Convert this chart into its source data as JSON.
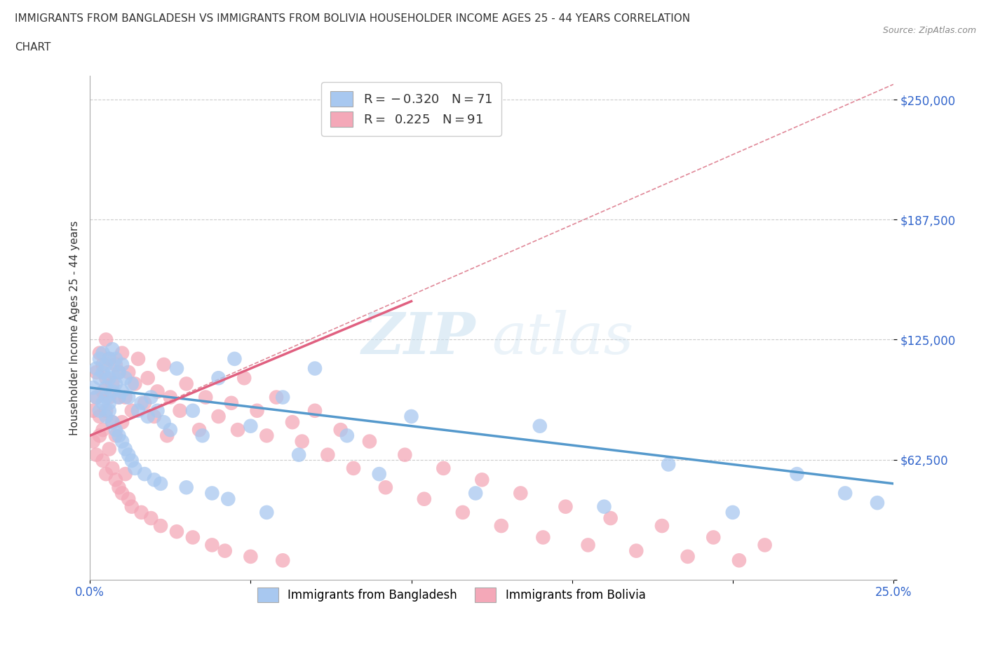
{
  "title_line1": "IMMIGRANTS FROM BANGLADESH VS IMMIGRANTS FROM BOLIVIA HOUSEHOLDER INCOME AGES 25 - 44 YEARS CORRELATION",
  "title_line2": "CHART",
  "source": "Source: ZipAtlas.com",
  "ylabel": "Householder Income Ages 25 - 44 years",
  "xlim": [
    0.0,
    0.25
  ],
  "ylim": [
    0,
    262500
  ],
  "yticks": [
    0,
    62500,
    125000,
    187500,
    250000
  ],
  "ytick_labels": [
    "",
    "$62,500",
    "$125,000",
    "$187,500",
    "$250,000"
  ],
  "xticks": [
    0.0,
    0.05,
    0.1,
    0.15,
    0.2,
    0.25
  ],
  "xtick_labels": [
    "0.0%",
    "",
    "",
    "",
    "",
    "25.0%"
  ],
  "color_bangladesh": "#a8c8f0",
  "color_bolivia": "#f4a8b8",
  "color_trendline_bangladesh": "#5599cc",
  "color_trendline_bolivia": "#e06080",
  "color_dashed": "#e08898",
  "watermark_zip": "ZIP",
  "watermark_atlas": "atlas",
  "background_color": "#ffffff",
  "grid_color": "#cccccc",
  "bangladesh_x": [
    0.001,
    0.002,
    0.002,
    0.003,
    0.003,
    0.003,
    0.004,
    0.004,
    0.004,
    0.005,
    0.005,
    0.005,
    0.005,
    0.006,
    0.006,
    0.006,
    0.006,
    0.007,
    0.007,
    0.007,
    0.007,
    0.008,
    0.008,
    0.008,
    0.009,
    0.009,
    0.009,
    0.01,
    0.01,
    0.01,
    0.011,
    0.011,
    0.012,
    0.012,
    0.013,
    0.013,
    0.014,
    0.015,
    0.016,
    0.017,
    0.018,
    0.019,
    0.02,
    0.021,
    0.022,
    0.023,
    0.025,
    0.027,
    0.03,
    0.032,
    0.035,
    0.038,
    0.04,
    0.043,
    0.045,
    0.05,
    0.055,
    0.06,
    0.065,
    0.07,
    0.08,
    0.09,
    0.1,
    0.12,
    0.14,
    0.16,
    0.18,
    0.2,
    0.22,
    0.235,
    0.245
  ],
  "bangladesh_y": [
    100000,
    95000,
    110000,
    105000,
    88000,
    115000,
    92000,
    108000,
    118000,
    85000,
    100000,
    112000,
    95000,
    88000,
    105000,
    115000,
    92000,
    82000,
    98000,
    108000,
    120000,
    78000,
    102000,
    115000,
    75000,
    95000,
    108000,
    72000,
    98000,
    112000,
    68000,
    105000,
    65000,
    95000,
    62000,
    102000,
    58000,
    88000,
    92000,
    55000,
    85000,
    95000,
    52000,
    88000,
    50000,
    82000,
    78000,
    110000,
    48000,
    88000,
    75000,
    45000,
    105000,
    42000,
    115000,
    80000,
    35000,
    95000,
    65000,
    110000,
    75000,
    55000,
    85000,
    45000,
    80000,
    38000,
    60000,
    35000,
    55000,
    45000,
    40000
  ],
  "bolivia_x": [
    0.001,
    0.001,
    0.002,
    0.002,
    0.002,
    0.003,
    0.003,
    0.003,
    0.004,
    0.004,
    0.004,
    0.004,
    0.005,
    0.005,
    0.005,
    0.005,
    0.006,
    0.006,
    0.006,
    0.007,
    0.007,
    0.007,
    0.008,
    0.008,
    0.008,
    0.009,
    0.009,
    0.009,
    0.01,
    0.01,
    0.01,
    0.011,
    0.011,
    0.012,
    0.012,
    0.013,
    0.013,
    0.014,
    0.015,
    0.016,
    0.017,
    0.018,
    0.019,
    0.02,
    0.021,
    0.022,
    0.023,
    0.024,
    0.025,
    0.027,
    0.028,
    0.03,
    0.032,
    0.034,
    0.036,
    0.038,
    0.04,
    0.042,
    0.044,
    0.046,
    0.048,
    0.05,
    0.052,
    0.055,
    0.058,
    0.06,
    0.063,
    0.066,
    0.07,
    0.074,
    0.078,
    0.082,
    0.087,
    0.092,
    0.098,
    0.104,
    0.11,
    0.116,
    0.122,
    0.128,
    0.134,
    0.141,
    0.148,
    0.155,
    0.162,
    0.17,
    0.178,
    0.186,
    0.194,
    0.202,
    0.21
  ],
  "bolivia_y": [
    72000,
    88000,
    65000,
    95000,
    108000,
    75000,
    118000,
    85000,
    62000,
    98000,
    112000,
    78000,
    55000,
    105000,
    88000,
    125000,
    68000,
    95000,
    115000,
    58000,
    102000,
    82000,
    52000,
    112000,
    75000,
    48000,
    95000,
    108000,
    45000,
    82000,
    118000,
    55000,
    95000,
    42000,
    108000,
    38000,
    88000,
    102000,
    115000,
    35000,
    92000,
    105000,
    32000,
    85000,
    98000,
    28000,
    112000,
    75000,
    95000,
    25000,
    88000,
    102000,
    22000,
    78000,
    95000,
    18000,
    85000,
    15000,
    92000,
    78000,
    105000,
    12000,
    88000,
    75000,
    95000,
    10000,
    82000,
    72000,
    88000,
    65000,
    78000,
    58000,
    72000,
    48000,
    65000,
    42000,
    58000,
    35000,
    52000,
    28000,
    45000,
    22000,
    38000,
    18000,
    32000,
    15000,
    28000,
    12000,
    22000,
    10000,
    18000
  ]
}
